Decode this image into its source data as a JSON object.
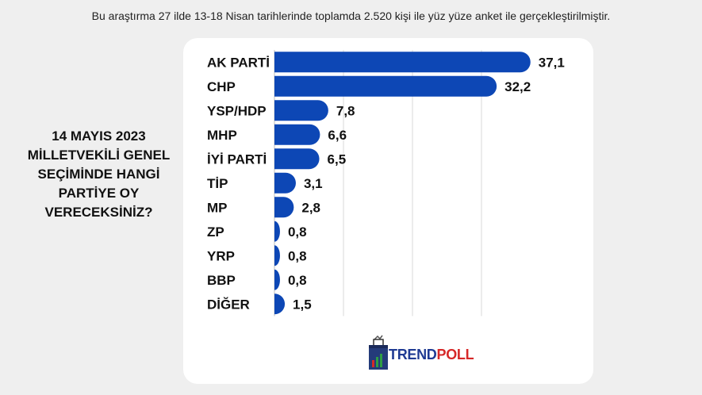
{
  "subtitle": "Bu araştırma 27 ilde 13-18 Nisan tarihlerinde toplamda 2.520 kişi ile yüz yüze anket ile gerçekleştirilmiştir.",
  "question": "14 MAYIS 2023 MİLLETVEKİLİ GENEL SEÇİMİNDE HANGİ PARTİYE OY VERECEKSİNİZ?",
  "logo": {
    "part1": "TREND",
    "part2": "POLL",
    "icon": "ballot-box-icon"
  },
  "colors": {
    "bar": "#0d47b5",
    "grid": "#d9d9d9",
    "card": "#ffffff",
    "background": "#efefef"
  },
  "chart_data": {
    "type": "bar",
    "orientation": "horizontal",
    "categories": [
      "AK PARTİ",
      "CHP",
      "YSP/HDP",
      "MHP",
      "İYİ PARTİ",
      "TİP",
      "MP",
      "ZP",
      "YRP",
      "BBP",
      "DİĞER"
    ],
    "values": [
      37.1,
      32.2,
      7.8,
      6.6,
      6.5,
      3.1,
      2.8,
      0.8,
      0.8,
      0.8,
      1.5
    ],
    "value_labels": [
      "37,1",
      "32,2",
      "7,8",
      "6,6",
      "6,5",
      "3,1",
      "2,8",
      "0,8",
      "0,8",
      "0,8",
      "1,5"
    ],
    "xlim": [
      0,
      40
    ],
    "grid": true,
    "title": "",
    "xlabel": "",
    "ylabel": ""
  }
}
